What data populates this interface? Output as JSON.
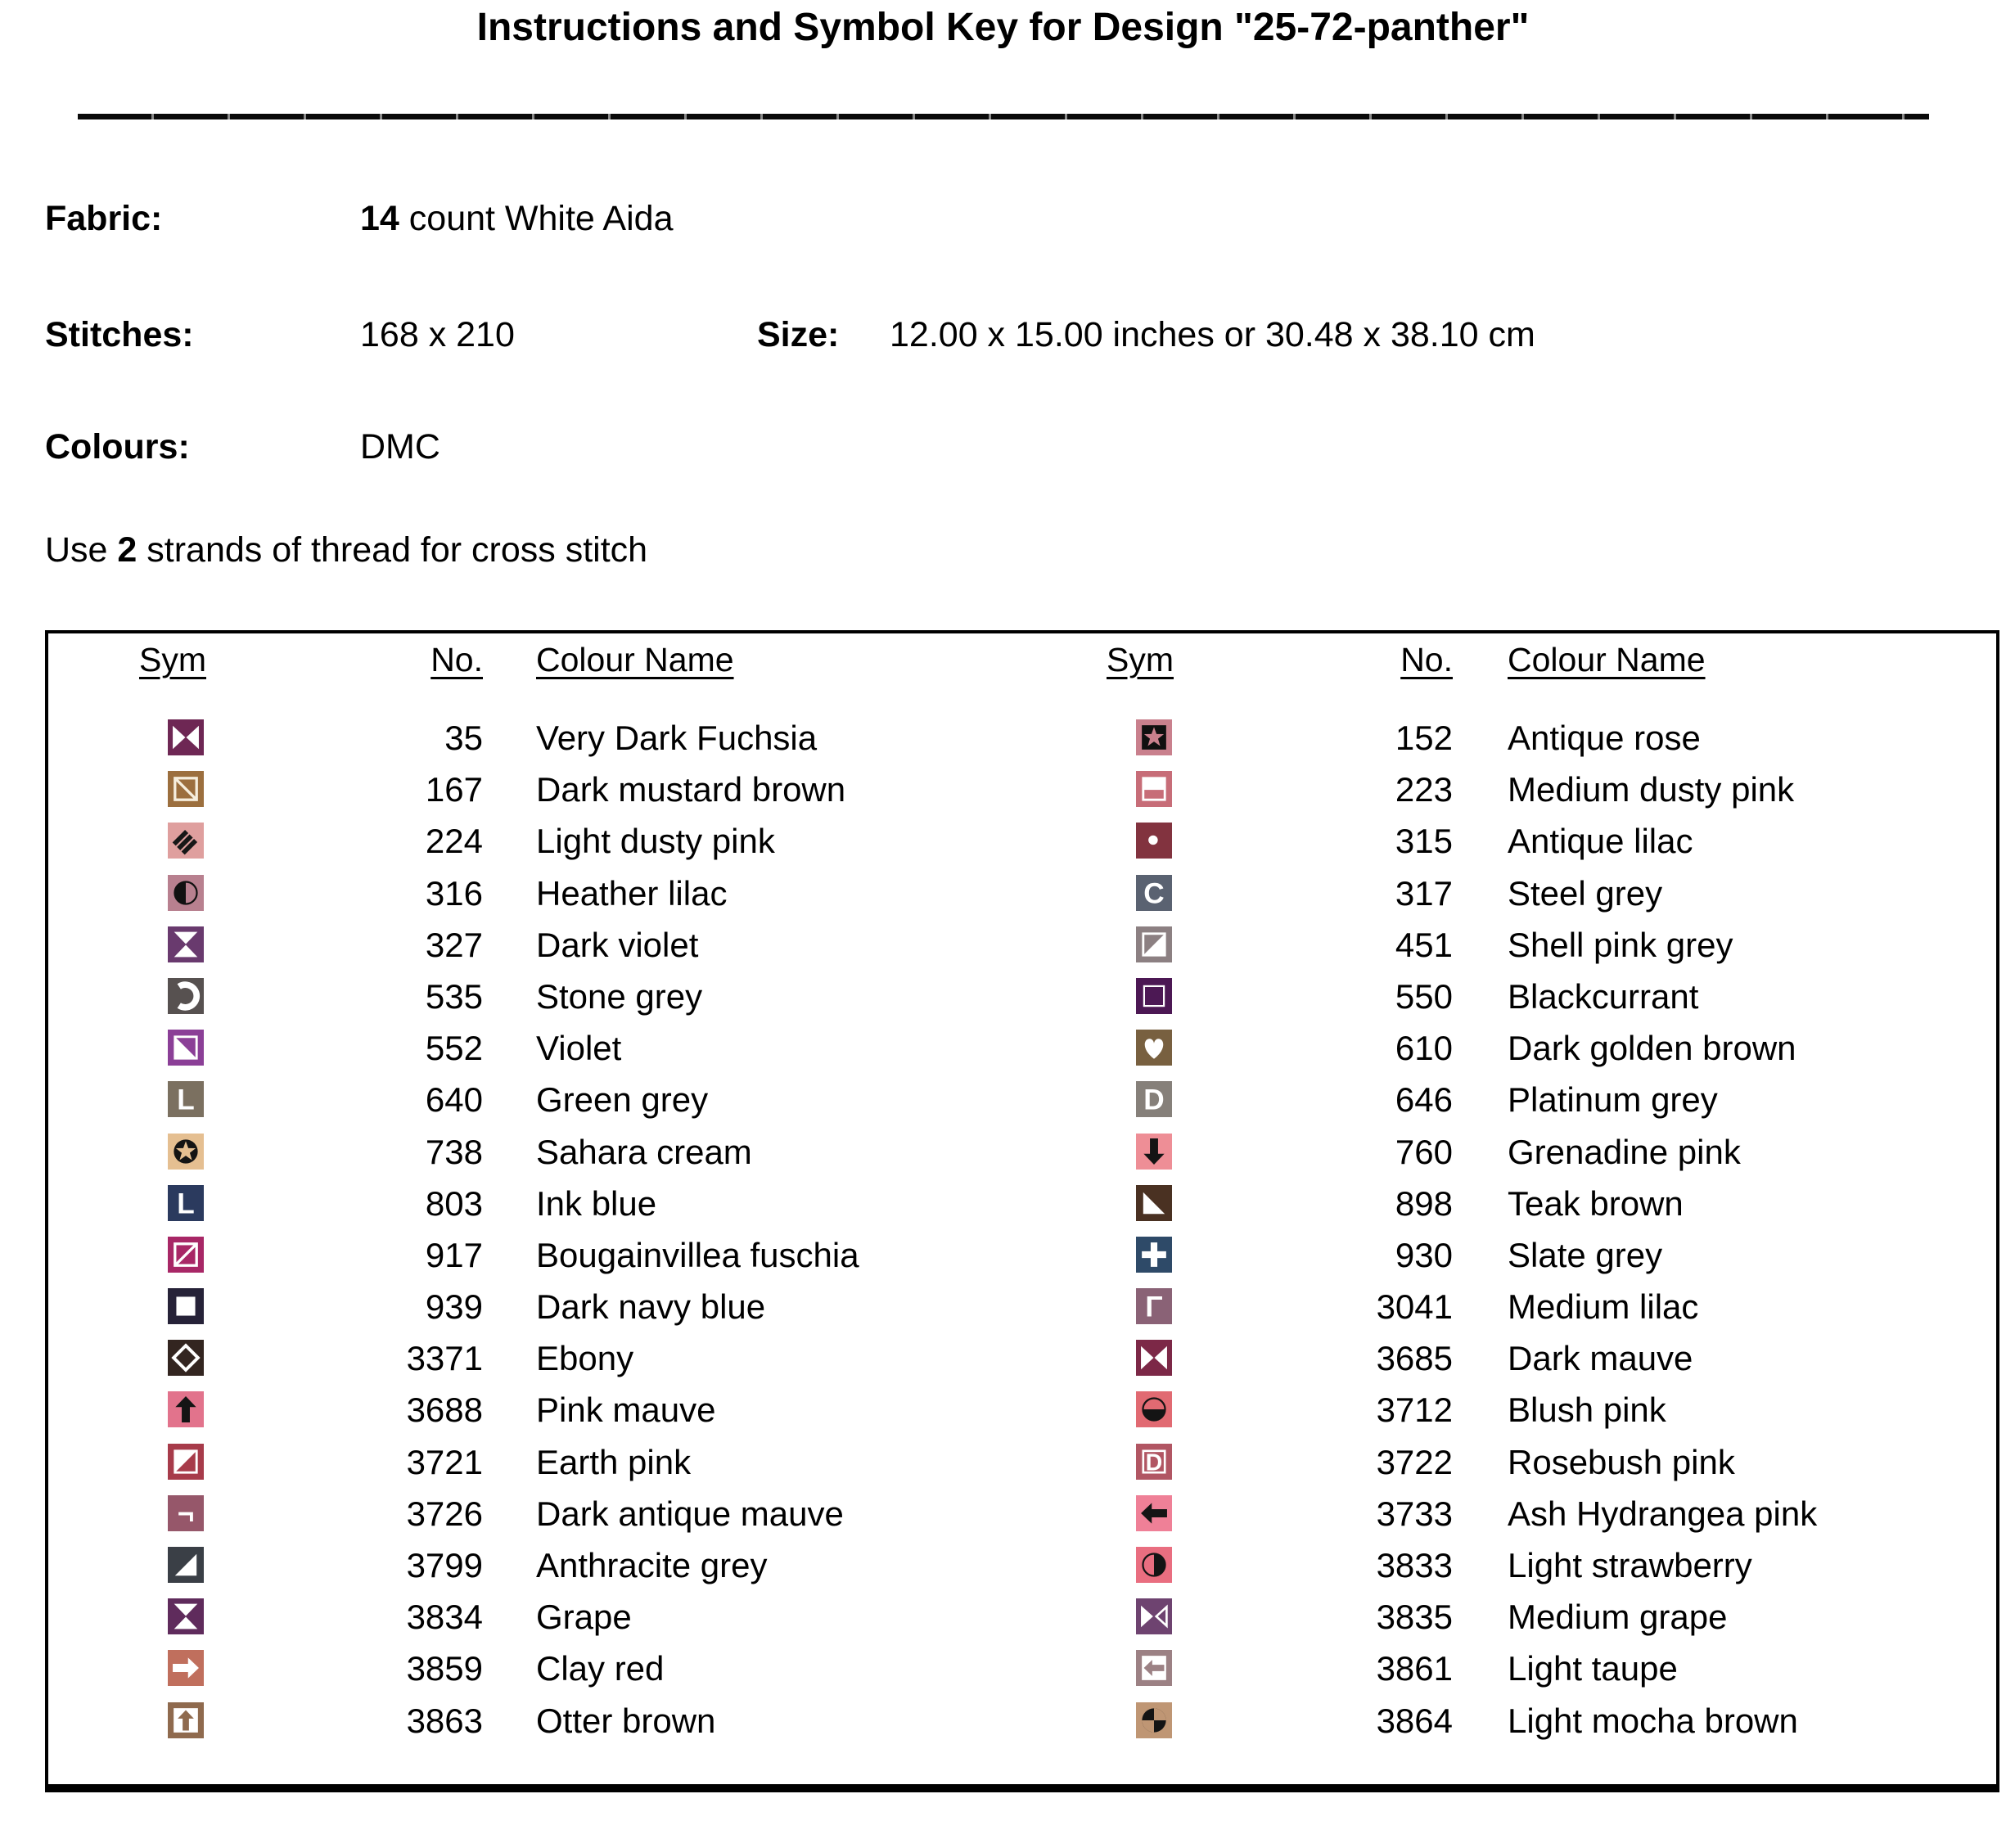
{
  "title": "Instructions and Symbol Key for Design \"25-72-panther\"",
  "meta": {
    "fabric_label": "Fabric:",
    "fabric_count": "14",
    "fabric_rest": " count White Aida",
    "stitches_label": "Stitches:",
    "stitches_value": "168 x 210",
    "size_label": "Size:",
    "size_value": "12.00 x 15.00 inches or 30.48 x 38.10 cm",
    "colours_label": "Colours:",
    "colours_value": "DMC",
    "strands_prefix": "Use ",
    "strands_count": "2",
    "strands_suffix": " strands of thread for cross stitch"
  },
  "key_table": {
    "headers": {
      "sym": "Sym",
      "no": "No.",
      "colour": "Colour Name"
    },
    "columns": [
      {
        "side": "left",
        "entries": [
          {
            "no": "35",
            "name": "Very Dark Fuchsia",
            "bg": "#6e2754",
            "fg": "#ffffff",
            "glyph": "bowtie"
          },
          {
            "no": "167",
            "name": "Dark mustard brown",
            "bg": "#9c6f3e",
            "fg": "#f6eedd",
            "glyph": "square-backslash"
          },
          {
            "no": "224",
            "name": "Light dusty pink",
            "bg": "#df9f9e",
            "fg": "#171717",
            "glyph": "hatch"
          },
          {
            "no": "316",
            "name": "Heather lilac",
            "bg": "#b8808f",
            "fg": "#111111",
            "glyph": "half-circle-left"
          },
          {
            "no": "327",
            "name": "Dark violet",
            "bg": "#693a6e",
            "fg": "#ffffff",
            "glyph": "hourglass"
          },
          {
            "no": "535",
            "name": "Stone grey",
            "bg": "#575150",
            "fg": "#ffffff",
            "glyph": "open-c"
          },
          {
            "no": "552",
            "name": "Violet",
            "bg": "#8b3f97",
            "fg": "#ffffff",
            "glyph": "square-triangle-bl"
          },
          {
            "no": "640",
            "name": "Green grey",
            "bg": "#7b7060",
            "fg": "#ffffff",
            "glyph": "letter",
            "char": "L",
            "weight": 600
          },
          {
            "no": "738",
            "name": "Sahara cream",
            "bg": "#e5bf91",
            "fg": "#141414",
            "glyph": "star-circle"
          },
          {
            "no": "803",
            "name": "Ink blue",
            "bg": "#2b3a5e",
            "fg": "#ffffff",
            "glyph": "letter",
            "char": "L",
            "weight": 800
          },
          {
            "no": "917",
            "name": "Bougainvillea fuschia",
            "bg": "#a82766",
            "fg": "#ffffff",
            "glyph": "square-slash"
          },
          {
            "no": "939",
            "name": "Dark navy blue",
            "bg": "#262238",
            "fg": "#ffffff",
            "glyph": "square-filled"
          },
          {
            "no": "3371",
            "name": "Ebony",
            "bg": "#332520",
            "fg": "#ffffff",
            "glyph": "diamond-outline"
          },
          {
            "no": "3688",
            "name": "Pink mauve",
            "bg": "#e2738c",
            "fg": "#141414",
            "glyph": "arrow-up"
          },
          {
            "no": "3721",
            "name": "Earth pink",
            "bg": "#a73b4a",
            "fg": "#ffffff",
            "glyph": "square-triangle-tl"
          },
          {
            "no": "3726",
            "name": "Dark antique mauve",
            "bg": "#96576a",
            "fg": "#ffffff",
            "glyph": "letter",
            "char": "¬",
            "weight": 800
          },
          {
            "no": "3799",
            "name": "Anthracite grey",
            "bg": "#3a3f46",
            "fg": "#ffffff",
            "glyph": "triangle-br"
          },
          {
            "no": "3834",
            "name": "Grape",
            "bg": "#5f2b5c",
            "fg": "#ffffff",
            "glyph": "hourglass"
          },
          {
            "no": "3859",
            "name": "Clay red",
            "bg": "#c06f5d",
            "fg": "#ffffff",
            "glyph": "arrow-right"
          },
          {
            "no": "3863",
            "name": "Otter brown",
            "bg": "#8f6a4e",
            "fg": "#ffffff",
            "glyph": "boxed-arrow-up"
          }
        ]
      },
      {
        "side": "right",
        "entries": [
          {
            "no": "152",
            "name": "Antique rose",
            "bg": "#c9808d",
            "fg": "#101010",
            "glyph": "star-square"
          },
          {
            "no": "223",
            "name": "Medium dusty pink",
            "bg": "#c76d78",
            "fg": "#ffffff",
            "glyph": "square-top-half"
          },
          {
            "no": "315",
            "name": "Antique lilac",
            "bg": "#82333f",
            "fg": "#ffffff",
            "glyph": "dot"
          },
          {
            "no": "317",
            "name": "Steel grey",
            "bg": "#5a6271",
            "fg": "#ffffff",
            "glyph": "letter",
            "char": "C",
            "weight": 800
          },
          {
            "no": "451",
            "name": "Shell pink grey",
            "bg": "#8c8082",
            "fg": "#ffffff",
            "glyph": "square-triangle-br"
          },
          {
            "no": "550",
            "name": "Blackcurrant",
            "bg": "#4c1854",
            "fg": "#ffffff",
            "glyph": "square-thin-outline"
          },
          {
            "no": "610",
            "name": "Dark golden brown",
            "bg": "#786040",
            "fg": "#ffffff",
            "glyph": "heart"
          },
          {
            "no": "646",
            "name": "Platinum grey",
            "bg": "#86807a",
            "fg": "#ffffff",
            "glyph": "letter",
            "char": "D",
            "weight": 800
          },
          {
            "no": "760",
            "name": "Grenadine pink",
            "bg": "#ee8e96",
            "fg": "#141414",
            "glyph": "arrow-down"
          },
          {
            "no": "898",
            "name": "Teak brown",
            "bg": "#4a3122",
            "fg": "#ffffff",
            "glyph": "triangle-bl"
          },
          {
            "no": "930",
            "name": "Slate grey",
            "bg": "#2e4a68",
            "fg": "#ffffff",
            "glyph": "plus"
          },
          {
            "no": "3041",
            "name": "Medium lilac",
            "bg": "#8a6276",
            "fg": "#ffffff",
            "glyph": "letter",
            "char": "Γ",
            "weight": 800
          },
          {
            "no": "3685",
            "name": "Dark mauve",
            "bg": "#7c2847",
            "fg": "#ffffff",
            "glyph": "bowtie"
          },
          {
            "no": "3712",
            "name": "Blush pink",
            "bg": "#e16a72",
            "fg": "#141414",
            "glyph": "half-circle-bottom"
          },
          {
            "no": "3722",
            "name": "Rosebush pink",
            "bg": "#b15663",
            "fg": "#ffffff",
            "glyph": "boxed-letter",
            "char": "D",
            "weight": 700
          },
          {
            "no": "3733",
            "name": "Ash Hydrangea pink",
            "bg": "#ef8097",
            "fg": "#141414",
            "glyph": "arrow-left"
          },
          {
            "no": "3833",
            "name": "Light strawberry",
            "bg": "#e96e80",
            "fg": "#141414",
            "glyph": "half-circle-right"
          },
          {
            "no": "3835",
            "name": "Medium grape",
            "bg": "#6e4370",
            "fg": "#ffffff",
            "glyph": "bowtie-open-right"
          },
          {
            "no": "3861",
            "name": "Light taupe",
            "bg": "#9c8184",
            "fg": "#ffffff",
            "glyph": "boxed-arrow-left"
          },
          {
            "no": "3864",
            "name": "Light mocha brown",
            "bg": "#bf9674",
            "fg": "#141414",
            "glyph": "quarter-circle"
          }
        ]
      }
    ]
  }
}
